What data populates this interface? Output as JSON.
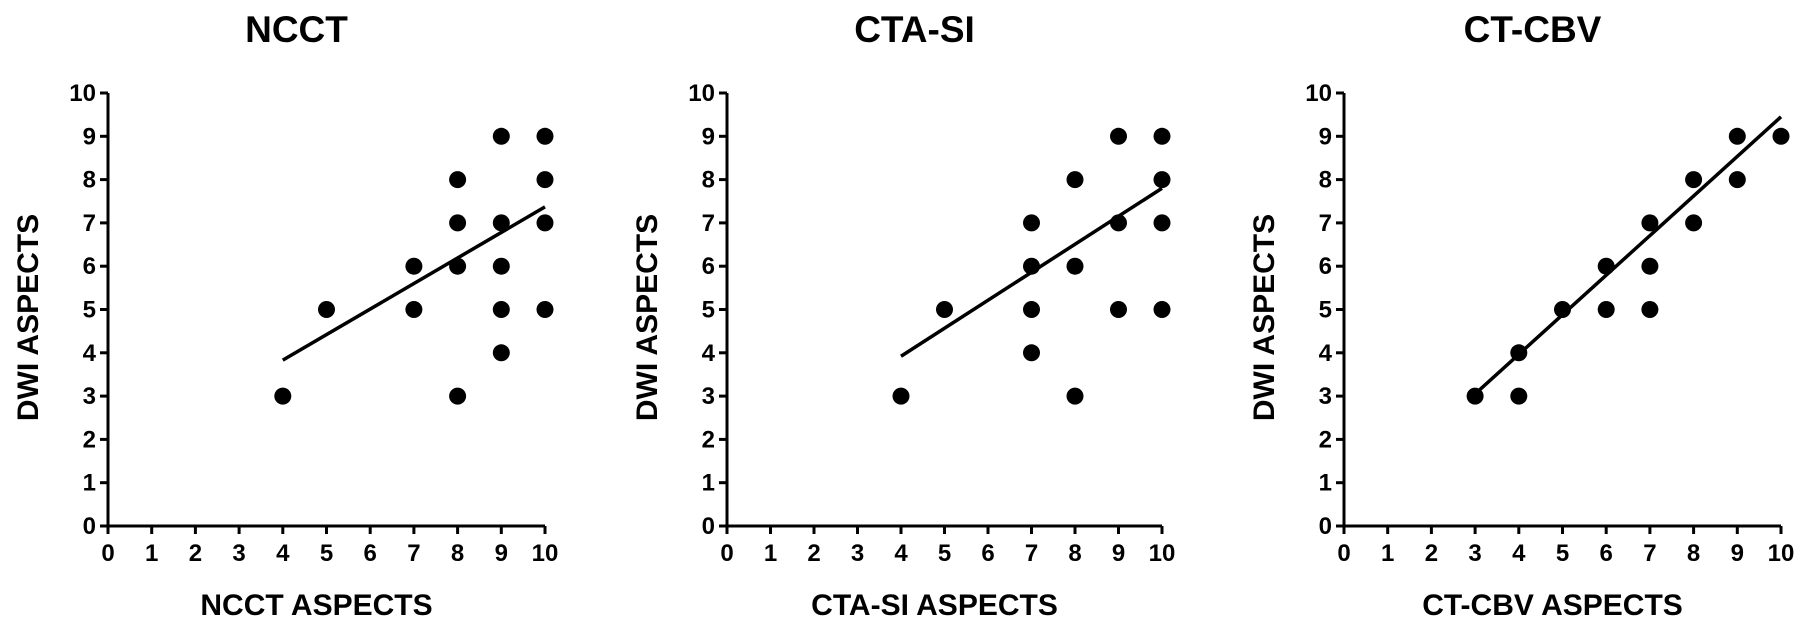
{
  "chart_data": [
    {
      "type": "scatter",
      "title": "NCCT",
      "xlabel": "NCCT ASPECTS",
      "ylabel": "DWI ASPECTS",
      "xlim": [
        0,
        10
      ],
      "ylim": [
        0,
        10
      ],
      "xticks": [
        "0",
        "1",
        "2",
        "3",
        "4",
        "5",
        "6",
        "7",
        "8",
        "9",
        "10"
      ],
      "yticks": [
        "0",
        "1",
        "2",
        "3",
        "4",
        "5",
        "6",
        "7",
        "8",
        "9",
        "10"
      ],
      "points": [
        [
          4,
          3
        ],
        [
          5,
          5
        ],
        [
          7,
          6
        ],
        [
          7,
          5
        ],
        [
          8,
          8
        ],
        [
          8,
          7
        ],
        [
          8,
          6
        ],
        [
          8,
          3
        ],
        [
          9,
          9
        ],
        [
          9,
          7
        ],
        [
          9,
          6
        ],
        [
          9,
          5
        ],
        [
          9,
          4
        ],
        [
          10,
          9
        ],
        [
          10,
          8
        ],
        [
          10,
          7
        ],
        [
          10,
          5
        ]
      ],
      "fit": [
        [
          4,
          3.83
        ],
        [
          10,
          7.37
        ]
      ]
    },
    {
      "type": "scatter",
      "title": "CTA-SI",
      "xlabel": "CTA-SI ASPECTS",
      "ylabel": "DWI ASPECTS",
      "xlim": [
        0,
        10
      ],
      "ylim": [
        0,
        10
      ],
      "xticks": [
        "0",
        "1",
        "2",
        "3",
        "4",
        "5",
        "6",
        "7",
        "8",
        "9",
        "10"
      ],
      "yticks": [
        "0",
        "1",
        "2",
        "3",
        "4",
        "5",
        "6",
        "7",
        "8",
        "9",
        "10"
      ],
      "points": [
        [
          4,
          3
        ],
        [
          5,
          5
        ],
        [
          7,
          7
        ],
        [
          7,
          6
        ],
        [
          7,
          5
        ],
        [
          7,
          4
        ],
        [
          8,
          8
        ],
        [
          8,
          6
        ],
        [
          8,
          3
        ],
        [
          9,
          9
        ],
        [
          9,
          7
        ],
        [
          9,
          5
        ],
        [
          10,
          9
        ],
        [
          10,
          8
        ],
        [
          10,
          7
        ],
        [
          10,
          5
        ]
      ],
      "fit": [
        [
          4,
          3.92
        ],
        [
          10,
          7.8
        ]
      ]
    },
    {
      "type": "scatter",
      "title": "CT-CBV",
      "xlabel": "CT-CBV ASPECTS",
      "ylabel": "DWI ASPECTS",
      "xlim": [
        0,
        10
      ],
      "ylim": [
        0,
        10
      ],
      "xticks": [
        "0",
        "1",
        "2",
        "3",
        "4",
        "5",
        "6",
        "7",
        "8",
        "9",
        "10"
      ],
      "yticks": [
        "0",
        "1",
        "2",
        "3",
        "4",
        "5",
        "6",
        "7",
        "8",
        "9",
        "10"
      ],
      "points": [
        [
          3,
          3
        ],
        [
          4,
          4
        ],
        [
          4,
          3
        ],
        [
          5,
          5
        ],
        [
          6,
          6
        ],
        [
          6,
          5
        ],
        [
          7,
          7
        ],
        [
          7,
          6
        ],
        [
          7,
          5
        ],
        [
          8,
          8
        ],
        [
          8,
          7
        ],
        [
          9,
          9
        ],
        [
          9,
          8
        ],
        [
          10,
          9
        ]
      ],
      "fit": [
        [
          3,
          3.05
        ],
        [
          10,
          9.45
        ]
      ]
    }
  ]
}
